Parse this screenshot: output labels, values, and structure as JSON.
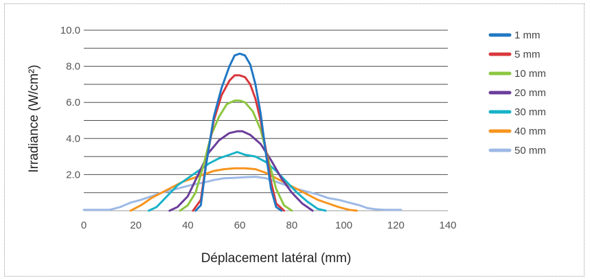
{
  "chart_data": {
    "type": "line",
    "xlabel": "Déplacement latéral (mm)",
    "ylabel": "Irradiance  (W/cm²)",
    "xlim": [
      0,
      140
    ],
    "ylim": [
      0,
      10
    ],
    "x_ticks": [
      "0",
      "20",
      "40",
      "60",
      "80",
      "100",
      "120",
      "140"
    ],
    "y_ticks": [
      "2.0",
      "4.0",
      "6.0",
      "8.0",
      "10.0"
    ],
    "grid": "horizontal",
    "legend_position": "right",
    "series": [
      {
        "name": "1 mm",
        "color": "#1f77c4",
        "points": [
          [
            43,
            0
          ],
          [
            45,
            0.3
          ],
          [
            47,
            2.5
          ],
          [
            50,
            5.2
          ],
          [
            53,
            6.8
          ],
          [
            56,
            8.0
          ],
          [
            58,
            8.6
          ],
          [
            60,
            8.7
          ],
          [
            62,
            8.6
          ],
          [
            64,
            8.1
          ],
          [
            66,
            7.0
          ],
          [
            68,
            5.4
          ],
          [
            70,
            3.2
          ],
          [
            72,
            1.2
          ],
          [
            74,
            0.2
          ],
          [
            76,
            0
          ]
        ]
      },
      {
        "name": "5 mm",
        "color": "#d9373b",
        "points": [
          [
            42,
            0
          ],
          [
            45,
            0.6
          ],
          [
            47,
            2.6
          ],
          [
            50,
            5.0
          ],
          [
            53,
            6.4
          ],
          [
            56,
            7.2
          ],
          [
            58,
            7.5
          ],
          [
            60,
            7.5
          ],
          [
            62,
            7.4
          ],
          [
            64,
            7.0
          ],
          [
            66,
            6.2
          ],
          [
            68,
            5.0
          ],
          [
            70,
            3.4
          ],
          [
            72,
            1.6
          ],
          [
            74,
            0.4
          ],
          [
            77,
            0
          ]
        ]
      },
      {
        "name": "10 mm",
        "color": "#8cc63f",
        "points": [
          [
            37,
            0
          ],
          [
            40,
            0.3
          ],
          [
            43,
            1.0
          ],
          [
            46,
            2.5
          ],
          [
            49,
            4.2
          ],
          [
            52,
            5.2
          ],
          [
            55,
            5.9
          ],
          [
            58,
            6.1
          ],
          [
            60,
            6.1
          ],
          [
            62,
            6.0
          ],
          [
            65,
            5.5
          ],
          [
            68,
            4.5
          ],
          [
            71,
            2.8
          ],
          [
            74,
            1.2
          ],
          [
            77,
            0.3
          ],
          [
            80,
            0
          ]
        ]
      },
      {
        "name": "20 mm",
        "color": "#6a3d9a",
        "points": [
          [
            33,
            0
          ],
          [
            36,
            0.2
          ],
          [
            40,
            0.8
          ],
          [
            44,
            2.0
          ],
          [
            48,
            3.2
          ],
          [
            52,
            3.9
          ],
          [
            56,
            4.3
          ],
          [
            59,
            4.4
          ],
          [
            61,
            4.4
          ],
          [
            64,
            4.2
          ],
          [
            68,
            3.7
          ],
          [
            72,
            2.8
          ],
          [
            76,
            1.8
          ],
          [
            80,
            1.0
          ],
          [
            84,
            0.4
          ],
          [
            88,
            0
          ]
        ]
      },
      {
        "name": "30 mm",
        "color": "#17b2c8",
        "points": [
          [
            25,
            0
          ],
          [
            28,
            0.2
          ],
          [
            32,
            0.8
          ],
          [
            36,
            1.4
          ],
          [
            40,
            1.8
          ],
          [
            44,
            2.2
          ],
          [
            48,
            2.6
          ],
          [
            52,
            2.9
          ],
          [
            56,
            3.1
          ],
          [
            59,
            3.25
          ],
          [
            62,
            3.1
          ],
          [
            66,
            3.0
          ],
          [
            70,
            2.7
          ],
          [
            74,
            2.2
          ],
          [
            78,
            1.6
          ],
          [
            82,
            1.0
          ],
          [
            86,
            0.5
          ],
          [
            90,
            0.1
          ],
          [
            93,
            0
          ]
        ]
      },
      {
        "name": "40 mm",
        "color": "#f7941d",
        "points": [
          [
            18,
            0
          ],
          [
            22,
            0.3
          ],
          [
            26,
            0.7
          ],
          [
            30,
            1.0
          ],
          [
            34,
            1.3
          ],
          [
            38,
            1.6
          ],
          [
            42,
            1.8
          ],
          [
            46,
            2.0
          ],
          [
            50,
            2.2
          ],
          [
            54,
            2.3
          ],
          [
            58,
            2.35
          ],
          [
            62,
            2.35
          ],
          [
            66,
            2.3
          ],
          [
            70,
            2.1
          ],
          [
            74,
            1.8
          ],
          [
            78,
            1.5
          ],
          [
            82,
            1.2
          ],
          [
            86,
            0.9
          ],
          [
            90,
            0.6
          ],
          [
            94,
            0.4
          ],
          [
            98,
            0.2
          ],
          [
            102,
            0.05
          ],
          [
            105,
            0
          ]
        ]
      },
      {
        "name": "50 mm",
        "color": "#9db9e6",
        "points": [
          [
            0,
            0.05
          ],
          [
            10,
            0.05
          ],
          [
            14,
            0.2
          ],
          [
            18,
            0.45
          ],
          [
            22,
            0.6
          ],
          [
            26,
            0.8
          ],
          [
            30,
            1.0
          ],
          [
            34,
            1.15
          ],
          [
            38,
            1.3
          ],
          [
            42,
            1.45
          ],
          [
            46,
            1.55
          ],
          [
            50,
            1.7
          ],
          [
            54,
            1.8
          ],
          [
            58,
            1.82
          ],
          [
            62,
            1.85
          ],
          [
            66,
            1.88
          ],
          [
            70,
            1.8
          ],
          [
            74,
            1.6
          ],
          [
            78,
            1.4
          ],
          [
            82,
            1.2
          ],
          [
            86,
            1.05
          ],
          [
            90,
            0.9
          ],
          [
            94,
            0.7
          ],
          [
            98,
            0.6
          ],
          [
            102,
            0.45
          ],
          [
            106,
            0.3
          ],
          [
            109,
            0.15
          ],
          [
            112,
            0.08
          ],
          [
            116,
            0.05
          ],
          [
            122,
            0.05
          ]
        ]
      }
    ]
  }
}
